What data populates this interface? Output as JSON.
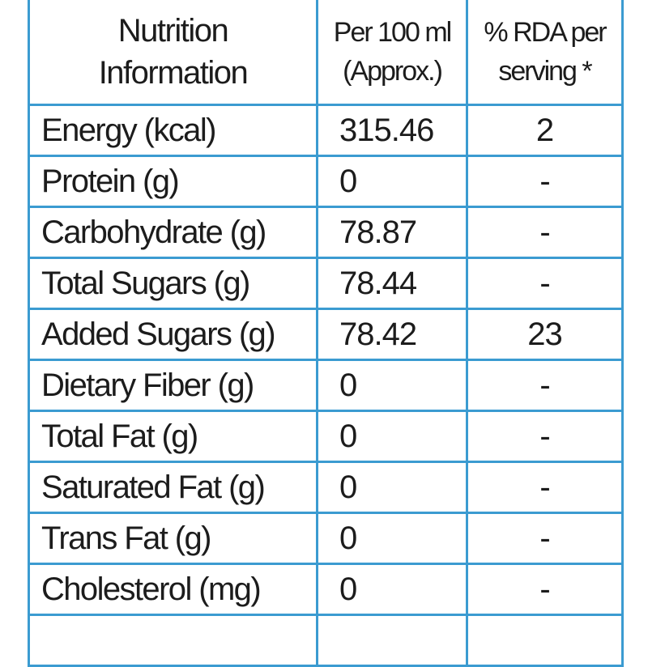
{
  "header": [
    [
      "Nutrition",
      "Information"
    ],
    [
      "Per 100 ml",
      "(Approx.)"
    ],
    [
      "% RDA per",
      "serving *"
    ]
  ],
  "rows": [
    [
      "Energy (kcal)",
      "315.46",
      "2"
    ],
    [
      "Protein (g)",
      "0",
      "-"
    ],
    [
      "Carbohydrate (g)",
      "78.87",
      "-"
    ],
    [
      "Total Sugars (g)",
      "78.44",
      "-"
    ],
    [
      "Added Sugars (g)",
      "78.42",
      "23"
    ],
    [
      "Dietary Fiber (g)",
      "0",
      "-"
    ],
    [
      "Total Fat (g)",
      "0",
      "-"
    ],
    [
      "Saturated Fat (g)",
      "0",
      "-"
    ],
    [
      "Trans Fat (g)",
      "0",
      "-"
    ],
    [
      "Cholesterol (mg)",
      "0",
      "-"
    ]
  ]
}
